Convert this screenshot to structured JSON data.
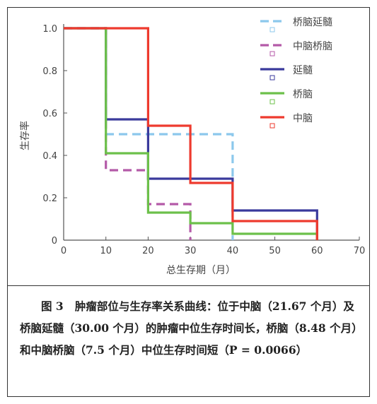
{
  "chart_data": {
    "type": "line",
    "step": true,
    "xlabel": "总生存期（月）",
    "ylabel": "生存率",
    "xlim": [
      0,
      70
    ],
    "ylim": [
      0,
      1.0
    ],
    "x_ticks": [
      "0",
      "10",
      "20",
      "30",
      "40",
      "50",
      "60",
      "70"
    ],
    "y_ticks": [
      "0",
      "0.2",
      "0.4",
      "0.6",
      "0.8",
      "1.0"
    ],
    "legend_position": "top-right",
    "series": [
      {
        "name": "桥脑延髓",
        "color": "#8cc8ec",
        "dash": "12,7",
        "x": [
          0,
          10,
          10,
          40,
          40
        ],
        "y": [
          1.0,
          1.0,
          0.5,
          0.5,
          0
        ]
      },
      {
        "name": "中脑桥脑",
        "color": "#b45aa8",
        "dash": "12,7",
        "x": [
          0,
          10,
          10,
          20,
          20,
          30,
          30
        ],
        "y": [
          1.0,
          1.0,
          0.33,
          0.33,
          0.17,
          0.17,
          0
        ]
      },
      {
        "name": "延髓",
        "color": "#3a3a9c",
        "dash": "",
        "x": [
          0,
          10,
          10,
          20,
          20,
          40,
          40,
          60,
          60
        ],
        "y": [
          1.0,
          1.0,
          0.57,
          0.57,
          0.29,
          0.29,
          0.14,
          0.14,
          0
        ]
      },
      {
        "name": "桥脑",
        "color": "#6cc04a",
        "dash": "",
        "x": [
          0,
          10,
          10,
          20,
          20,
          30,
          30,
          40,
          40,
          60,
          60
        ],
        "y": [
          1.0,
          1.0,
          0.41,
          0.41,
          0.13,
          0.13,
          0.08,
          0.08,
          0.03,
          0.03,
          0
        ]
      },
      {
        "name": "中脑",
        "color": "#ee3a2e",
        "dash": "",
        "x": [
          0,
          20,
          20,
          30,
          30,
          40,
          40,
          60,
          60
        ],
        "y": [
          1.0,
          1.0,
          0.54,
          0.54,
          0.27,
          0.27,
          0.09,
          0.09,
          0
        ]
      }
    ]
  },
  "caption": {
    "figure_label": "图 3",
    "text": "肿瘤部位与生存率关系曲线：位于中脑（21.67 个月）及桥脑延髓（30.00 个月）的肿瘤中位生存时间长，桥脑（8.48 个月）和中脑桥脑（7.5 个月）中位生存时间短（P = 0.0066）"
  }
}
